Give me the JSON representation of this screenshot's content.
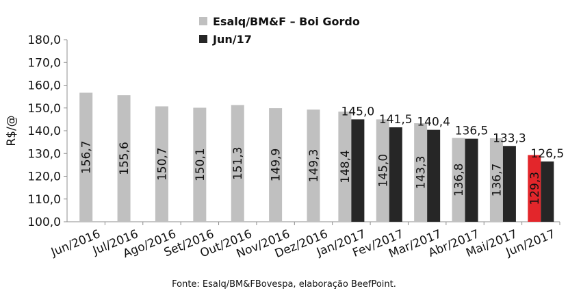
{
  "chart_data": {
    "type": "bar",
    "ylabel": "R$/@",
    "xlabel": "",
    "ylim": [
      100,
      180
    ],
    "yticks": [
      "100,0",
      "110,0",
      "120,0",
      "130,0",
      "140,0",
      "150,0",
      "160,0",
      "170,0",
      "180,0"
    ],
    "categories": [
      "Jun/2016",
      "Jul/2016",
      "Ago/2016",
      "Set/2016",
      "Out/2016",
      "Nov/2016",
      "Dez/2016",
      "Jan/2017",
      "Fev/2017",
      "Mar/2017",
      "Abr/2017",
      "Mai/2017",
      "Jun/2017"
    ],
    "series": [
      {
        "name": "Esalq/BM&F – Boi Gordo",
        "color": "#c0c0c0",
        "values": [
          156.7,
          155.6,
          150.7,
          150.1,
          151.3,
          149.9,
          149.3,
          148.4,
          145.0,
          143.3,
          136.8,
          136.7,
          129.3
        ],
        "labels": [
          "156,7",
          "155,6",
          "150,7",
          "150,1",
          "151,3",
          "149,9",
          "149,3",
          "148,4",
          "145,0",
          "143,3",
          "136,8",
          "136,7",
          "129,3"
        ]
      },
      {
        "name": "Jun/17",
        "color": "#262626",
        "values": [
          null,
          null,
          null,
          null,
          null,
          null,
          null,
          145.0,
          141.5,
          140.4,
          136.5,
          133.3,
          126.5
        ],
        "labels": [
          "",
          "",
          "",
          "",
          "",
          "",
          "",
          "145,0",
          "141,5",
          "140,4",
          "136,5",
          "133,3",
          "126,5"
        ]
      }
    ],
    "highlight": {
      "category": "Jun/2017",
      "series": "Esalq/BM&F – Boi Gordo",
      "color": "#e3262b"
    },
    "legend_position": "top-center",
    "grid": false
  },
  "source_note": "Fonte: Esalq/BM&FBovespa, elaboração BeefPoint."
}
